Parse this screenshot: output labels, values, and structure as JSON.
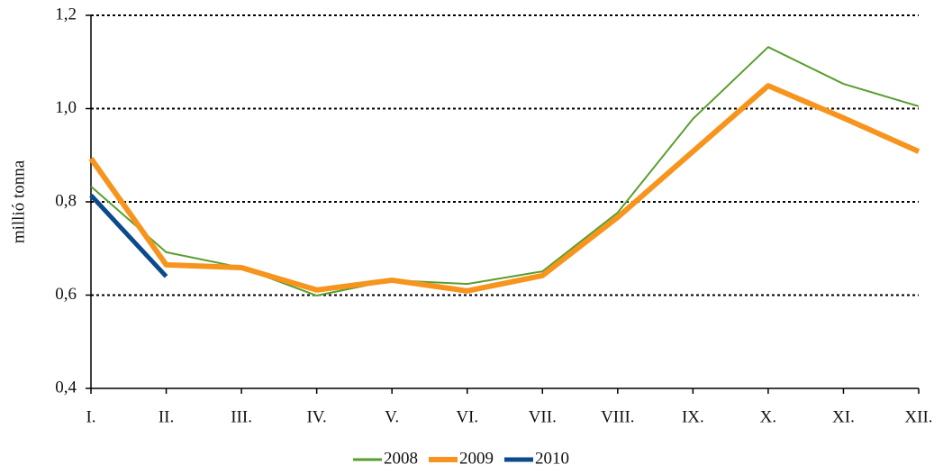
{
  "chart_data": {
    "type": "line",
    "y_label": "millió tonna",
    "categories": [
      "I.",
      "II.",
      "III.",
      "IV.",
      "V.",
      "VI.",
      "VII.",
      "VIII.",
      "IX.",
      "X.",
      "XI.",
      "XII."
    ],
    "series": [
      {
        "name": "2008",
        "color": "#5a9e2f",
        "values": [
          0.833,
          0.692,
          0.659,
          0.599,
          0.632,
          0.624,
          0.651,
          0.777,
          0.978,
          1.132,
          1.053,
          1.005
        ]
      },
      {
        "name": "2009",
        "color": "#f7941d",
        "values": [
          0.893,
          0.665,
          0.659,
          0.611,
          0.632,
          0.609,
          0.642,
          0.767,
          0.908,
          1.049,
          0.98,
          0.908
        ]
      },
      {
        "name": "2010",
        "color": "#0b4a8b",
        "values": [
          0.814,
          0.64,
          null,
          null,
          null,
          null,
          null,
          null,
          null,
          null,
          null,
          null
        ]
      }
    ],
    "ylim": [
      0.4,
      1.2
    ],
    "yticks": [
      {
        "value": 0.4,
        "label": "0,4"
      },
      {
        "value": 0.6,
        "label": "0,6"
      },
      {
        "value": 0.8,
        "label": "0,8"
      },
      {
        "value": 1.0,
        "label": "1,0"
      },
      {
        "value": 1.2,
        "label": "1,2"
      }
    ],
    "grid": true,
    "legend": "bottom"
  }
}
